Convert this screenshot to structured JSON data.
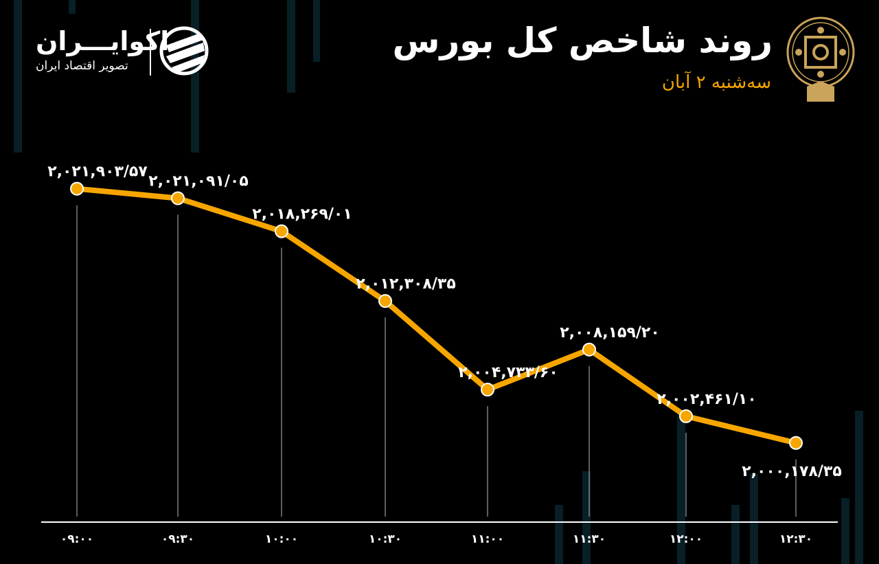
{
  "header": {
    "title": "روند شاخص کل بورس",
    "subtitle": "سه‌شنبه ۲ آبان"
  },
  "brand": {
    "name": "اکوایـــران",
    "tagline": "تصویر اقتصاد ایران",
    "emblem": "tehran-stock-exchange-emblem"
  },
  "colors": {
    "line": "#f7a600",
    "background": "#000000",
    "text": "#ffffff",
    "accent": "#f7a600"
  },
  "chart_data": {
    "type": "line",
    "title": "روند شاخص کل بورس",
    "categories": [
      "09:00",
      "09:30",
      "10:00",
      "10:30",
      "11:00",
      "11:30",
      "12:00",
      "12:30"
    ],
    "tick_labels": [
      "۰۹:۰۰",
      "۰۹:۳۰",
      "۱۰:۰۰",
      "۱۰:۳۰",
      "۱۱:۰۰",
      "۱۱:۳۰",
      "۱۲:۰۰",
      "۱۲:۳۰"
    ],
    "values": [
      2021903.57,
      2021091.05,
      2018269.01,
      2012308.35,
      2004733.6,
      2008159.2,
      2002461.1,
      2000178.35
    ],
    "data_labels": [
      "۲,۰۲۱,۹۰۳/۵۷",
      "۲,۰۲۱,۰۹۱/۰۵",
      "۲,۰۱۸,۲۶۹/۰۱",
      "۲,۰۱۲,۳۰۸/۳۵",
      "۲,۰۰۴,۷۳۳/۶۰",
      "۲,۰۰۸,۱۵۹/۲۰",
      "۲,۰۰۲,۴۶۱/۱۰",
      "۲,۰۰۰,۱۷۸/۳۵"
    ],
    "ylim": [
      1994000,
      2025000
    ],
    "grid": false,
    "legend": "none"
  }
}
